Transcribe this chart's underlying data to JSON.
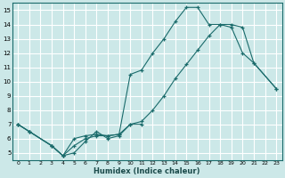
{
  "xlabel": "Humidex (Indice chaleur)",
  "bg_color": "#cce8e8",
  "grid_color": "#ffffff",
  "line_color": "#1a6b6b",
  "xlim": [
    -0.5,
    23.5
  ],
  "ylim": [
    4.5,
    15.5
  ],
  "xticks": [
    0,
    1,
    2,
    3,
    4,
    5,
    6,
    7,
    8,
    9,
    10,
    11,
    12,
    13,
    14,
    15,
    16,
    17,
    18,
    19,
    20,
    21,
    22,
    23
  ],
  "yticks": [
    5,
    6,
    7,
    8,
    9,
    10,
    11,
    12,
    13,
    14,
    15
  ],
  "series1": {
    "x": [
      0,
      1,
      3,
      4,
      5,
      6,
      7,
      8,
      9,
      10,
      11
    ],
    "y": [
      7.0,
      6.5,
      5.5,
      4.8,
      5.0,
      5.8,
      6.5,
      6.0,
      6.2,
      7.0,
      7.0
    ]
  },
  "series2": {
    "x": [
      0,
      1,
      3,
      4,
      5,
      6,
      7,
      8,
      9,
      10,
      11,
      12,
      13,
      14,
      15,
      16,
      17,
      18,
      19,
      20,
      21,
      23
    ],
    "y": [
      7.0,
      6.5,
      5.5,
      4.8,
      6.0,
      6.2,
      6.3,
      6.2,
      6.3,
      10.5,
      10.8,
      12.0,
      13.0,
      14.2,
      15.2,
      15.2,
      14.0,
      14.0,
      14.0,
      13.8,
      11.3,
      9.5
    ]
  },
  "series3": {
    "x": [
      0,
      1,
      3,
      4,
      5,
      6,
      7,
      8,
      9,
      10,
      11,
      12,
      13,
      14,
      15,
      16,
      17,
      18,
      19,
      20,
      21,
      23
    ],
    "y": [
      7.0,
      6.5,
      5.5,
      4.8,
      5.5,
      6.0,
      6.2,
      6.2,
      6.3,
      7.0,
      7.2,
      8.0,
      9.0,
      10.2,
      11.2,
      12.2,
      13.2,
      14.0,
      13.8,
      12.0,
      11.3,
      9.5
    ]
  }
}
